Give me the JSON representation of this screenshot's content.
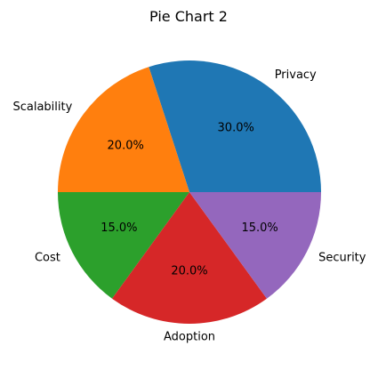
{
  "chart_data": {
    "type": "pie",
    "title": "Pie Chart 2",
    "start_angle_deg": 0,
    "direction": "counterclockwise",
    "slices": [
      {
        "label": "Privacy",
        "value": 30.0,
        "pct_label": "30.0%",
        "color": "#1f77b4"
      },
      {
        "label": "Scalability",
        "value": 20.0,
        "pct_label": "20.0%",
        "color": "#ff7f0e"
      },
      {
        "label": "Cost",
        "value": 15.0,
        "pct_label": "15.0%",
        "color": "#2ca02c"
      },
      {
        "label": "Adoption",
        "value": 20.0,
        "pct_label": "20.0%",
        "color": "#d62728"
      },
      {
        "label": "Security",
        "value": 15.0,
        "pct_label": "15.0%",
        "color": "#9467bd"
      }
    ]
  }
}
